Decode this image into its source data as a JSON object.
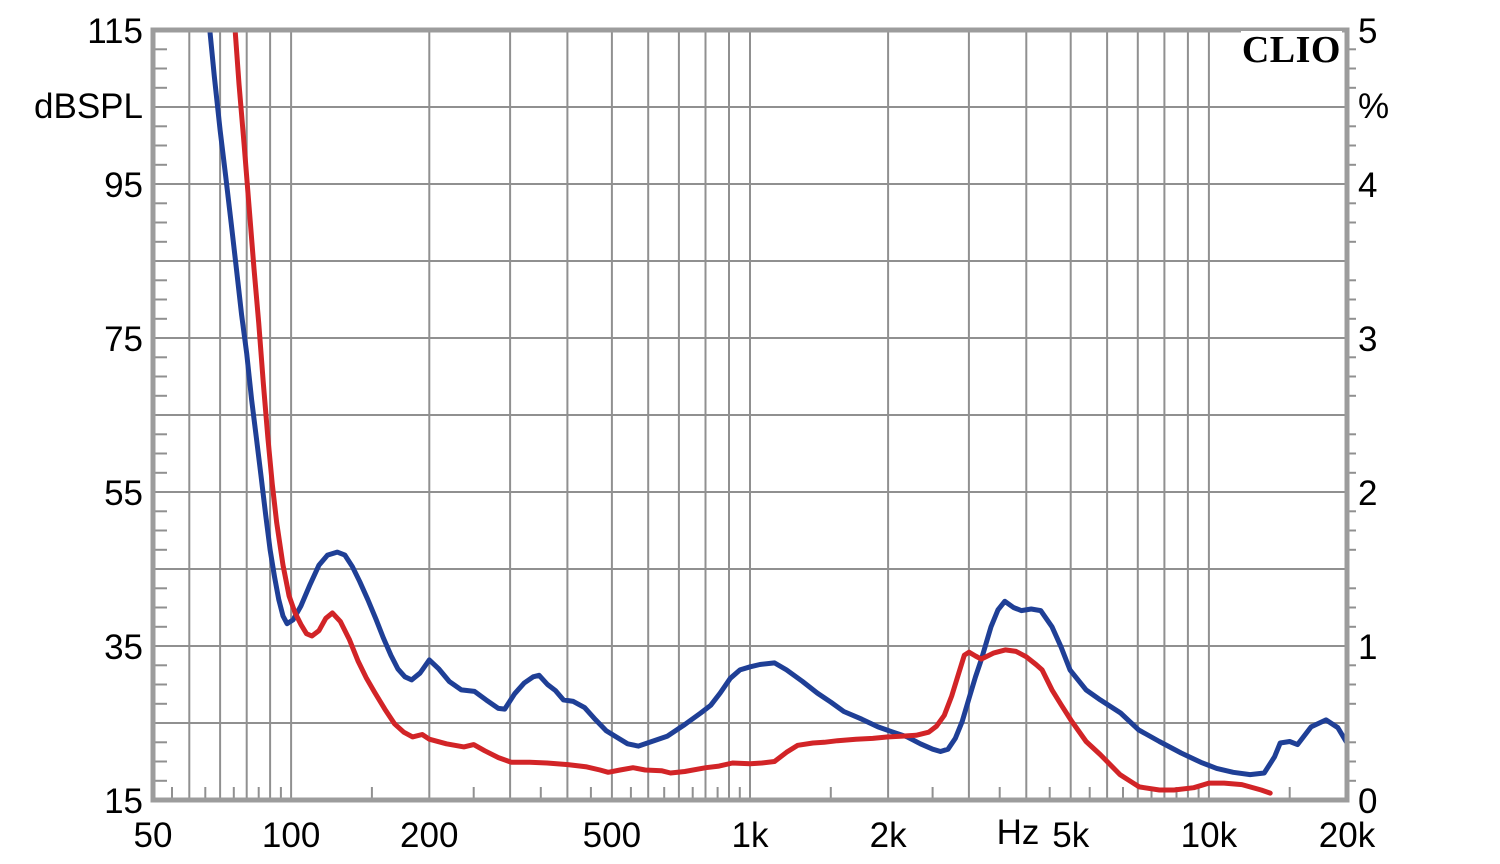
{
  "chart_data": {
    "type": "line",
    "title": "",
    "branding": "CLIO",
    "grid": true,
    "legend": "none",
    "colors": {
      "grid": "#909090",
      "border": "#9c9c9c",
      "text": "#000000",
      "background": "#ffffff"
    },
    "x_axis": {
      "scale": "log",
      "range": [
        50,
        20000
      ],
      "unit_label": "Hz",
      "ticks": [
        {
          "f": 50,
          "label": "50"
        },
        {
          "f": 100,
          "label": "100"
        },
        {
          "f": 200,
          "label": "200"
        },
        {
          "f": 500,
          "label": "500"
        },
        {
          "f": 1000,
          "label": "1k"
        },
        {
          "f": 2000,
          "label": "2k"
        },
        {
          "f": 5000,
          "label": "5k"
        },
        {
          "f": 10000,
          "label": "10k"
        },
        {
          "f": 20000,
          "label": "20k"
        }
      ],
      "gridlines": [
        60,
        70,
        80,
        90,
        100,
        200,
        300,
        400,
        500,
        600,
        700,
        800,
        900,
        1000,
        2000,
        3000,
        4000,
        5000,
        6000,
        7000,
        8000,
        9000,
        10000
      ],
      "minor_ticks": [
        55,
        65,
        75,
        85,
        95,
        150,
        250,
        350,
        450,
        550,
        650,
        750,
        850,
        950,
        1500,
        2500,
        3500,
        4500,
        5500,
        6500,
        7500,
        8500,
        9500,
        15000
      ]
    },
    "y_left": {
      "label": "dBSPL",
      "range": [
        15,
        115
      ],
      "gridline_step": 10,
      "minor_tick_step": 2.5,
      "ticks": [
        {
          "v": 115,
          "label": "115"
        },
        {
          "v": 95,
          "label": "95"
        },
        {
          "v": 75,
          "label": "75"
        },
        {
          "v": 55,
          "label": "55"
        },
        {
          "v": 35,
          "label": "35"
        },
        {
          "v": 15,
          "label": "15"
        }
      ]
    },
    "y_right": {
      "label": "%",
      "range": [
        0,
        5
      ],
      "ticks": [
        {
          "v": 5,
          "label": "5"
        },
        {
          "v": 4,
          "label": "4"
        },
        {
          "v": 3,
          "label": "3"
        },
        {
          "v": 2,
          "label": "2"
        },
        {
          "v": 1,
          "label": "1"
        },
        {
          "v": 0,
          "label": "0"
        }
      ]
    },
    "series": [
      {
        "name": "blue-curve",
        "color": "#1f3f96",
        "points": [
          [
            66.5,
            115
          ],
          [
            68,
            109
          ],
          [
            70,
            102
          ],
          [
            72,
            96
          ],
          [
            74,
            90
          ],
          [
            76,
            84
          ],
          [
            78,
            78
          ],
          [
            80,
            73
          ],
          [
            82,
            67
          ],
          [
            84,
            62
          ],
          [
            86,
            57
          ],
          [
            88,
            52
          ],
          [
            90,
            47.5
          ],
          [
            92,
            44
          ],
          [
            94,
            41
          ],
          [
            96,
            38.9
          ],
          [
            98,
            37.9
          ],
          [
            101,
            38.4
          ],
          [
            105,
            40.2
          ],
          [
            110,
            43
          ],
          [
            115,
            45.5
          ],
          [
            120,
            46.8
          ],
          [
            126,
            47.2
          ],
          [
            131,
            46.8
          ],
          [
            136,
            45.3
          ],
          [
            141,
            43.4
          ],
          [
            147,
            41
          ],
          [
            153,
            38.5
          ],
          [
            159,
            36
          ],
          [
            165,
            33.8
          ],
          [
            171,
            32
          ],
          [
            177,
            31
          ],
          [
            183,
            30.6
          ],
          [
            191,
            31.5
          ],
          [
            200,
            33.2
          ],
          [
            210,
            32
          ],
          [
            221,
            30.4
          ],
          [
            235,
            29.3
          ],
          [
            251,
            29.1
          ],
          [
            266,
            28
          ],
          [
            283,
            26.9
          ],
          [
            292,
            26.8
          ],
          [
            307,
            28.8
          ],
          [
            322,
            30.2
          ],
          [
            337,
            31
          ],
          [
            347,
            31.2
          ],
          [
            362,
            30
          ],
          [
            377,
            29.2
          ],
          [
            392,
            28
          ],
          [
            412,
            27.8
          ],
          [
            436,
            27
          ],
          [
            461,
            25.4
          ],
          [
            486,
            24
          ],
          [
            511,
            23.2
          ],
          [
            541,
            22.3
          ],
          [
            571,
            22
          ],
          [
            611,
            22.6
          ],
          [
            661,
            23.3
          ],
          [
            721,
            24.8
          ],
          [
            781,
            26.3
          ],
          [
            821,
            27.3
          ],
          [
            861,
            28.9
          ],
          [
            906,
            30.8
          ],
          [
            951,
            31.9
          ],
          [
            1001,
            32.3
          ],
          [
            1051,
            32.6
          ],
          [
            1131,
            32.8
          ],
          [
            1201,
            31.9
          ],
          [
            1301,
            30.4
          ],
          [
            1401,
            28.9
          ],
          [
            1501,
            27.7
          ],
          [
            1601,
            26.5
          ],
          [
            1751,
            25.5
          ],
          [
            1901,
            24.5
          ],
          [
            2051,
            23.8
          ],
          [
            2201,
            23.2
          ],
          [
            2351,
            22.3
          ],
          [
            2501,
            21.6
          ],
          [
            2601,
            21.3
          ],
          [
            2701,
            21.6
          ],
          [
            2801,
            23
          ],
          [
            2901,
            25.2
          ],
          [
            3001,
            28.2
          ],
          [
            3101,
            31
          ],
          [
            3191,
            33.2
          ],
          [
            3351,
            37.5
          ],
          [
            3471,
            39.7
          ],
          [
            3591,
            40.8
          ],
          [
            3751,
            40
          ],
          [
            3901,
            39.6
          ],
          [
            4101,
            39.8
          ],
          [
            4301,
            39.6
          ],
          [
            4551,
            37.5
          ],
          [
            4761,
            34.9
          ],
          [
            4981,
            31.9
          ],
          [
            5401,
            29.3
          ],
          [
            5801,
            28
          ],
          [
            6421,
            26.3
          ],
          [
            7031,
            24.1
          ],
          [
            7801,
            22.6
          ],
          [
            8701,
            21.1
          ],
          [
            9601,
            19.9
          ],
          [
            10401,
            19.1
          ],
          [
            11301,
            18.6
          ],
          [
            12301,
            18.3
          ],
          [
            13201,
            18.5
          ],
          [
            13901,
            20.6
          ],
          [
            14301,
            22.4
          ],
          [
            15001,
            22.6
          ],
          [
            15601,
            22.2
          ],
          [
            16701,
            24.5
          ],
          [
            18001,
            25.4
          ],
          [
            19101,
            24.4
          ],
          [
            20000,
            22.4
          ]
        ]
      },
      {
        "name": "red-curve",
        "color": "#d22427",
        "points": [
          [
            75.5,
            115
          ],
          [
            77,
            108
          ],
          [
            79,
            100
          ],
          [
            81,
            92
          ],
          [
            83,
            84
          ],
          [
            85,
            77
          ],
          [
            87,
            69
          ],
          [
            89,
            62
          ],
          [
            91,
            56
          ],
          [
            93,
            51
          ],
          [
            96,
            45.5
          ],
          [
            99,
            41.5
          ],
          [
            102,
            39.3
          ],
          [
            105,
            37.8
          ],
          [
            108,
            36.6
          ],
          [
            111,
            36.3
          ],
          [
            115,
            37
          ],
          [
            119,
            38.6
          ],
          [
            123,
            39.3
          ],
          [
            128,
            38.2
          ],
          [
            134,
            35.8
          ],
          [
            140,
            33
          ],
          [
            146,
            30.8
          ],
          [
            152,
            29
          ],
          [
            160,
            26.8
          ],
          [
            168,
            24.9
          ],
          [
            176,
            23.8
          ],
          [
            184,
            23.2
          ],
          [
            193,
            23.5
          ],
          [
            200,
            22.9
          ],
          [
            218,
            22.3
          ],
          [
            238,
            21.9
          ],
          [
            250,
            22.2
          ],
          [
            264,
            21.4
          ],
          [
            283,
            20.5
          ],
          [
            302,
            19.9
          ],
          [
            331,
            19.9
          ],
          [
            361,
            19.8
          ],
          [
            401,
            19.6
          ],
          [
            441,
            19.3
          ],
          [
            471,
            18.9
          ],
          [
            491,
            18.6
          ],
          [
            521,
            18.9
          ],
          [
            556,
            19.2
          ],
          [
            591,
            18.9
          ],
          [
            641,
            18.8
          ],
          [
            671,
            18.5
          ],
          [
            721,
            18.7
          ],
          [
            801,
            19.2
          ],
          [
            856,
            19.4
          ],
          [
            916,
            19.8
          ],
          [
            1001,
            19.7
          ],
          [
            1061,
            19.8
          ],
          [
            1131,
            20
          ],
          [
            1201,
            21.2
          ],
          [
            1271,
            22.1
          ],
          [
            1371,
            22.4
          ],
          [
            1451,
            22.5
          ],
          [
            1551,
            22.7
          ],
          [
            1701,
            22.9
          ],
          [
            1851,
            23
          ],
          [
            2001,
            23.2
          ],
          [
            2151,
            23.3
          ],
          [
            2301,
            23.4
          ],
          [
            2451,
            23.8
          ],
          [
            2551,
            24.6
          ],
          [
            2651,
            26
          ],
          [
            2751,
            28.5
          ],
          [
            2851,
            31.5
          ],
          [
            2931,
            33.8
          ],
          [
            3001,
            34.2
          ],
          [
            3101,
            33.7
          ],
          [
            3191,
            33.3
          ],
          [
            3401,
            34.1
          ],
          [
            3601,
            34.5
          ],
          [
            3801,
            34.3
          ],
          [
            4001,
            33.6
          ],
          [
            4201,
            32.6
          ],
          [
            4331,
            31.9
          ],
          [
            4551,
            29.3
          ],
          [
            4761,
            27.4
          ],
          [
            5001,
            25.4
          ],
          [
            5401,
            22.6
          ],
          [
            5801,
            20.9
          ],
          [
            6401,
            18.3
          ],
          [
            6801,
            17.3
          ],
          [
            7051,
            16.7
          ],
          [
            7801,
            16.3
          ],
          [
            8401,
            16.3
          ],
          [
            9271,
            16.6
          ],
          [
            10001,
            17.2
          ],
          [
            10801,
            17.2
          ],
          [
            11801,
            17
          ],
          [
            13001,
            16.3
          ],
          [
            13601,
            15.9
          ]
        ]
      }
    ]
  }
}
